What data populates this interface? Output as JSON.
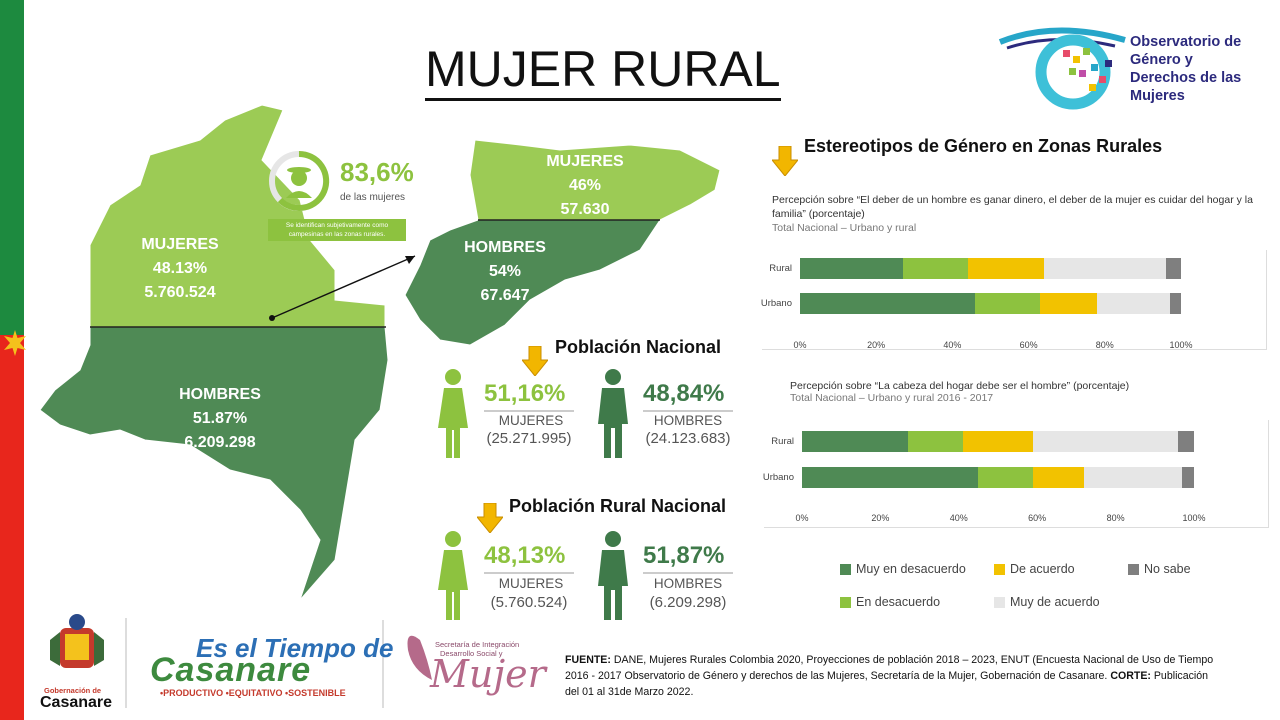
{
  "title": "MUJER RURAL",
  "logo": {
    "text_lines": [
      "Observatorio de",
      "Género y",
      "Derechos de las",
      "Mujeres"
    ]
  },
  "map": {
    "rural_women": {
      "label": "MUJERES",
      "pct": "48.13%",
      "count": "5.760.524"
    },
    "urban_men": {
      "label": "HOMBRES",
      "pct": "51.87%",
      "count": "6.209.298"
    },
    "zoom_women": {
      "label": "MUJERES",
      "pct": "46%",
      "count": "57.630"
    },
    "zoom_men": {
      "label": "HOMBRES",
      "pct": "54%",
      "count": "67.647"
    }
  },
  "badge": {
    "pct": "83,6%",
    "sub": "de las mujeres",
    "note": "Se identifican subjetivamente como campesinas en las zonas rurales."
  },
  "poblacion_nacional": {
    "heading": "Población Nacional",
    "mujeres": {
      "pct": "51,16%",
      "label": "MUJERES",
      "count": "(25.271.995)"
    },
    "hombres": {
      "pct": "48,84%",
      "label": "HOMBRES",
      "count": "(24.123.683)"
    }
  },
  "poblacion_rural": {
    "heading": "Población Rural Nacional",
    "mujeres": {
      "pct": "48,13%",
      "label": "MUJERES",
      "count": "(5.760.524)"
    },
    "hombres": {
      "pct": "51,87%",
      "label": "HOMBRES",
      "count": "(6.209.298)"
    }
  },
  "estereotipos_heading": "Estereotipos de Género en Zonas Rurales",
  "colors": {
    "muy_desacuerdo": "#4f8a55",
    "en_desacuerdo": "#8dc23f",
    "de_acuerdo": "#f2c200",
    "muy_acuerdo": "#e6e6e6",
    "no_sabe": "#7f7f7f",
    "rural_green": "#8dc23f",
    "dark_green": "#3f7a4a"
  },
  "chart_data": [
    {
      "type": "bar",
      "orientation": "horizontal-stacked-100",
      "title": "Percepción sobre “El deber de un hombre es ganar dinero, el deber de la mujer es cuidar del hogar y la familia” (porcentaje)",
      "subtitle": "Total Nacional – Urbano y rural",
      "categories": [
        "Rural",
        "Urbano"
      ],
      "series": [
        {
          "name": "Muy en desacuerdo",
          "values": [
            27,
            46
          ]
        },
        {
          "name": "En desacuerdo",
          "values": [
            17,
            17
          ]
        },
        {
          "name": "De acuerdo",
          "values": [
            20,
            15
          ]
        },
        {
          "name": "Muy de acuerdo",
          "values": [
            32,
            19
          ]
        },
        {
          "name": "No sabe",
          "values": [
            4,
            3
          ]
        }
      ],
      "xlim": [
        0,
        100
      ],
      "ticks": [
        "0%",
        "20%",
        "40%",
        "60%",
        "80%",
        "100%"
      ]
    },
    {
      "type": "bar",
      "orientation": "horizontal-stacked-100",
      "title": "Percepción sobre “La cabeza del hogar debe ser el hombre” (porcentaje)",
      "subtitle": "Total Nacional – Urbano y rural 2016 - 2017",
      "categories": [
        "Rural",
        "Urbano"
      ],
      "series": [
        {
          "name": "Muy en desacuerdo",
          "values": [
            27,
            45
          ]
        },
        {
          "name": "En desacuerdo",
          "values": [
            14,
            14
          ]
        },
        {
          "name": "De acuerdo",
          "values": [
            18,
            13
          ]
        },
        {
          "name": "Muy de acuerdo",
          "values": [
            37,
            25
          ]
        },
        {
          "name": "No sabe",
          "values": [
            4,
            3
          ]
        }
      ],
      "xlim": [
        0,
        100
      ],
      "ticks": [
        "0%",
        "20%",
        "40%",
        "60%",
        "80%",
        "100%"
      ]
    }
  ],
  "legend": [
    {
      "name": "Muy en desacuerdo",
      "color": "#4f8a55"
    },
    {
      "name": "De acuerdo",
      "color": "#f2c200"
    },
    {
      "name": "No sabe",
      "color": "#7f7f7f"
    },
    {
      "name": "En desacuerdo",
      "color": "#8dc23f"
    },
    {
      "name": "Muy de acuerdo",
      "color": "#e6e6e6"
    }
  ],
  "footer": {
    "fuente_label": "FUENTE:",
    "fuente_text": " DANE, Mujeres Rurales Colombia 2020, Proyecciones de población 2018 – 2023, ENUT (Encuesta Nacional de Uso de Tiempo 2016 - 2017  Observatorio de Género y derechos de las Mujeres, Secretaría de la Mujer, Gobernación de Casanare. ",
    "corte_label": "CORTE:",
    "corte_text": " Publicación del 01 al 31de Marzo 2022.",
    "gob_line1": "Gobernación de",
    "gob_line2": "Casanare",
    "tiempo_line1": "Es el Tiempo de",
    "tiempo_line2": "Casanare",
    "tiempo_line3": "•PRODUCTIVO •EQUITATIVO •SOSTENIBLE",
    "secretaria_line1": "Secretaría de Integración",
    "secretaria_line2": "Desarrollo Social y",
    "secretaria_word": "Mujer"
  }
}
